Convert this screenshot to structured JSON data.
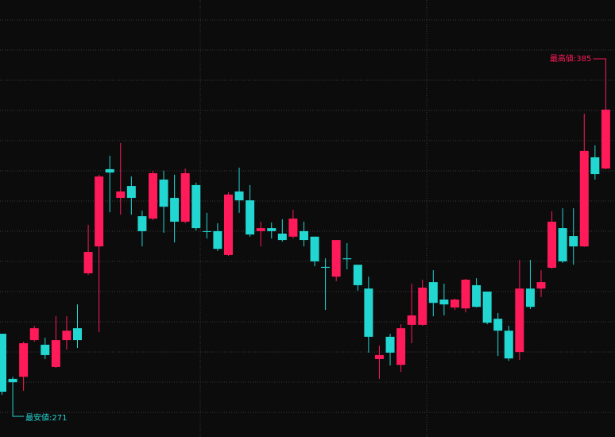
{
  "chart_data": {
    "type": "candlestick",
    "up_color": "#ff1a5a",
    "down_color": "#22d6d2",
    "annotations": {
      "high": "最高値:385",
      "low": "最安値:271"
    },
    "categories": [
      null,
      null,
      null,
      null,
      null,
      null,
      null,
      null,
      null,
      null,
      null,
      null,
      null,
      null,
      null,
      null,
      null,
      null,
      null,
      null,
      null,
      null,
      null,
      null,
      null,
      null,
      null,
      null,
      null,
      null,
      null,
      null,
      null,
      null,
      null,
      null,
      null,
      null,
      null,
      null,
      null,
      null,
      null,
      null,
      null,
      null,
      null,
      null,
      null,
      null,
      null,
      null,
      null,
      null,
      null,
      null,
      null
    ],
    "open": [
      296.5,
      281.7,
      282.4,
      294.4,
      292.9,
      285.6,
      294.4,
      298.3,
      316.3,
      325.1,
      350.4,
      341.0,
      344.9,
      335.0,
      334.2,
      347.0,
      341.0,
      333.2,
      345.2,
      330.1,
      330.1,
      322.3,
      343.1,
      340.2,
      330.1,
      331.1,
      329.3,
      328.3,
      330.1,
      328.3,
      318.4,
      315.2,
      321.2,
      319.1,
      311.3,
      288.2,
      295.5,
      286.3,
      299.4,
      299.4,
      313.4,
      307.7,
      305.1,
      304.8,
      312.4,
      310.3,
      301.4,
      297.5,
      290.5,
      311.3,
      311.3,
      318.1,
      331.1,
      328.5,
      325.1,
      354.3,
      350.6
    ],
    "high": [
      296.5,
      282.4,
      293.9,
      299.1,
      295.2,
      302.2,
      302.2,
      306.1,
      332.2,
      348.6,
      354.8,
      359.0,
      348.0,
      336.8,
      349.9,
      349.9,
      348.6,
      350.6,
      346.0,
      336.1,
      332.7,
      342.8,
      350.9,
      345.2,
      333.2,
      332.9,
      334.0,
      337.1,
      333.2,
      328.3,
      321.2,
      327.2,
      326.2,
      319.1,
      315.2,
      292.6,
      296.5,
      299.6,
      312.9,
      314.2,
      317.3,
      312.9,
      308.0,
      314.5,
      314.7,
      310.3,
      303.3,
      299.1,
      320.7,
      320.7,
      317.3,
      336.6,
      337.6,
      337.6,
      368.6,
      358.2,
      385
    ],
    "low": [
      276.5,
      271,
      277.8,
      293.9,
      288.2,
      285.3,
      291.3,
      291.8,
      315.8,
      297.0,
      336.3,
      335.5,
      335.5,
      325.1,
      333.7,
      329.6,
      326.4,
      332.7,
      330.3,
      327.7,
      323.6,
      322.0,
      336.1,
      328.3,
      325.1,
      327.7,
      326.7,
      327.7,
      325.1,
      318.6,
      304.3,
      313.7,
      317.6,
      310.6,
      290.3,
      281.7,
      286.1,
      284.0,
      293.4,
      299.1,
      302.2,
      302.5,
      304.3,
      303.5,
      305.1,
      299.6,
      289.2,
      287.6,
      287.9,
      304.6,
      308.5,
      317.8,
      319.7,
      319.1,
      324.9,
      347.0,
      350.4
    ],
    "close": [
      277.5,
      280.6,
      293.4,
      298.3,
      289.5,
      294.4,
      297.5,
      294.4,
      323.3,
      348.0,
      349.3,
      343.1,
      341.0,
      330.1,
      349.1,
      338.1,
      333.2,
      349.1,
      331.1,
      329.9,
      324.3,
      342.1,
      340.2,
      329.0,
      331.1,
      330.1,
      327.2,
      334.2,
      327.2,
      320.2,
      318.1,
      327.2,
      320.9,
      312.4,
      295.5,
      289.5,
      290.3,
      298.3,
      302.5,
      311.6,
      306.6,
      306.1,
      307.7,
      314.2,
      305.3,
      300.1,
      297.5,
      288.4,
      311.3,
      305.3,
      313.4,
      333.2,
      320.2,
      325.1,
      356.4,
      348.8,
      369.9
    ]
  }
}
